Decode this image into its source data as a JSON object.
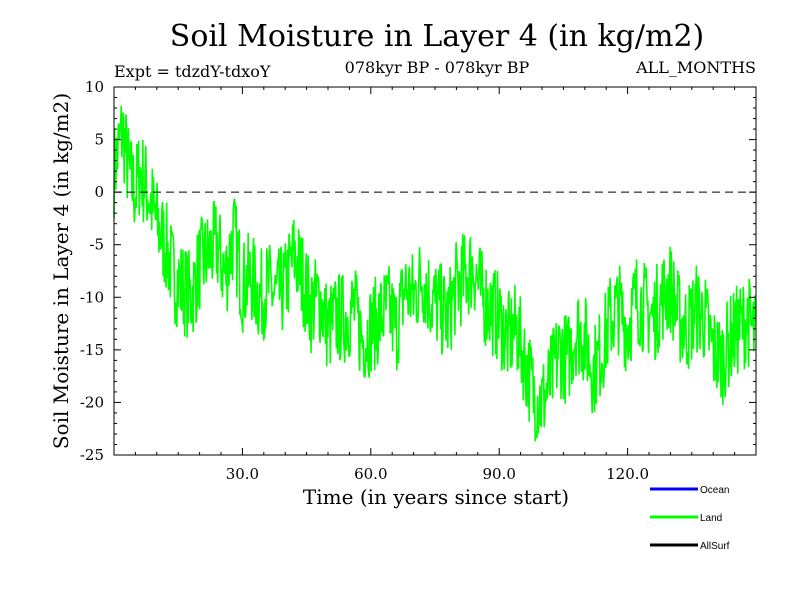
{
  "chart_data": {
    "type": "line",
    "title": "Soil Moisture in Layer 4 (in kg/m2)",
    "subtitle_left": "Expt = tdzdY-tdxoY",
    "subtitle_center": "078kyr BP - 078kyr BP",
    "subtitle_right": "ALL_MONTHS",
    "xlabel": "Time (in years since start)",
    "ylabel": "Soil Moisture in Layer 4 (in kg/m2)",
    "xlim": [
      0,
      150
    ],
    "ylim": [
      -25,
      10
    ],
    "x_ticks": [
      30,
      60,
      90,
      120
    ],
    "x_tick_labels": [
      "30.0",
      "60.0",
      "90.0",
      "120.0"
    ],
    "y_ticks": [
      10,
      5,
      0,
      -5,
      -10,
      -15,
      -20,
      -25
    ],
    "y_tick_labels": [
      "10",
      "5",
      "0",
      "-5",
      "-10",
      "-15",
      "-20",
      "-25"
    ],
    "reference_line": {
      "y": 0,
      "style": "dashed"
    },
    "series": [
      {
        "name": "Ocean",
        "color": "#0000ff",
        "values": []
      },
      {
        "name": "Land",
        "color": "#00ff00",
        "x": [
          0,
          1,
          2,
          3,
          4,
          5,
          6,
          8,
          10,
          12,
          14,
          16,
          18,
          20,
          22,
          24,
          26,
          28,
          30,
          32,
          34,
          36,
          38,
          40,
          42,
          44,
          46,
          48,
          50,
          52,
          54,
          56,
          58,
          60,
          62,
          64,
          66,
          68,
          70,
          72,
          74,
          76,
          78,
          80,
          82,
          84,
          86,
          88,
          90,
          92,
          94,
          96,
          98,
          100,
          102,
          104,
          106,
          108,
          110,
          112,
          114,
          116,
          118,
          120,
          122,
          124,
          126,
          128,
          130,
          132,
          134,
          136,
          138,
          140,
          142,
          144,
          146,
          148,
          150
        ],
        "values": [
          2,
          4,
          6,
          3,
          1,
          0,
          2,
          0,
          -3,
          -5,
          -8,
          -9,
          -10,
          -7,
          -6,
          -5,
          -8,
          -4,
          -9,
          -8,
          -10,
          -9,
          -10,
          -9,
          -6,
          -8,
          -11,
          -10,
          -13,
          -12,
          -12,
          -11,
          -14,
          -13,
          -12,
          -11,
          -13,
          -9,
          -10,
          -8,
          -10,
          -11,
          -12,
          -9,
          -8,
          -7,
          -10,
          -11,
          -12,
          -14,
          -13,
          -16,
          -19,
          -20,
          -18,
          -15,
          -16,
          -13,
          -14,
          -17,
          -15,
          -12,
          -11,
          -13,
          -10,
          -11,
          -12,
          -10,
          -9,
          -12,
          -13,
          -11,
          -12,
          -15,
          -16,
          -14,
          -13,
          -12,
          -14
        ]
      },
      {
        "name": "AllSurf",
        "color": "#000000",
        "values": []
      }
    ],
    "legend": {
      "position": "bottom-right",
      "entries": [
        "Ocean",
        "Land",
        "AllSurf"
      ]
    }
  }
}
